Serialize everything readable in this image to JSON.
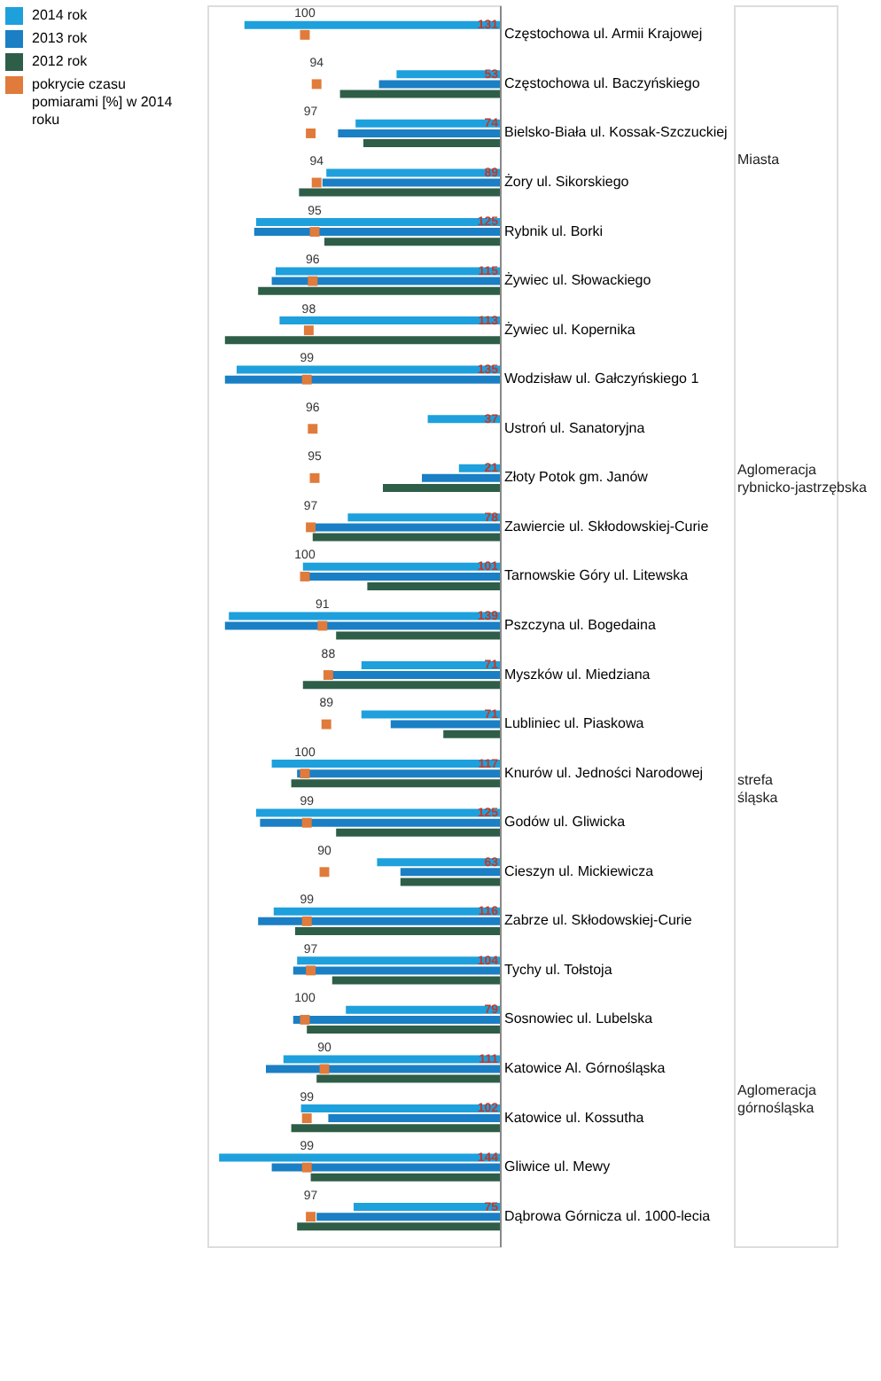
{
  "chart_data": {
    "type": "bar",
    "orientation": "horizontal",
    "categories": [
      "Częstochowa ul. Armii Krajowej",
      "Częstochowa ul. Baczyńskiego",
      "Bielsko-Biała ul. Kossak-Szczuckiej",
      "Żory ul. Sikorskiego",
      "Rybnik ul. Borki",
      "Żywiec ul. Słowackiego",
      "Żywiec ul. Kopernika",
      "Wodzisław ul. Gałczyńskiego 1",
      "Ustroń ul. Sanatoryjna",
      "Złoty Potok gm. Janów",
      "Zawiercie ul. Skłodowskiej-Curie",
      "Tarnowskie Góry ul. Litewska",
      "Pszczyna ul. Bogedaina",
      "Myszków ul. Miedziana",
      "Lubliniec ul. Piaskowa",
      "Knurów ul. Jedności Narodowej",
      "Godów ul. Gliwicka",
      "Cieszyn ul. Mickiewicza",
      "Zabrze ul. Skłodowskiej-Curie",
      "Tychy ul. Tołstoja",
      "Sosnowiec ul. Lubelska",
      "Katowice Al. Górnośląska",
      "Katowice ul. Kossutha",
      "Gliwice ul. Mewy",
      "Dąbrowa Górnicza ul. 1000-lecia"
    ],
    "xlim": [
      150,
      0
    ],
    "tick_labels": "y",
    "legend": "left",
    "series": [
      {
        "name": "2014 rok",
        "color": "#1ea0dc",
        "values": [
          131,
          53,
          74,
          89,
          125,
          115,
          113,
          135,
          37,
          21,
          78,
          101,
          139,
          71,
          71,
          117,
          125,
          63,
          116,
          104,
          79,
          111,
          102,
          144,
          75
        ],
        "value_labels": [
          "131",
          "53",
          "74",
          "89",
          "125",
          "115",
          "113",
          "135",
          "37",
          "21",
          "78",
          "101",
          "139",
          "71",
          "71",
          "117",
          "125",
          "63",
          "116",
          "104",
          "79",
          "111",
          "102",
          "144",
          "75"
        ]
      },
      {
        "name": "2013 rok",
        "color": "#1a7fc4",
        "values": [
          null,
          62,
          83,
          91,
          126,
          117,
          null,
          141,
          null,
          40,
          95,
          101,
          141,
          86,
          56,
          104,
          123,
          51,
          124,
          106,
          106,
          120,
          88,
          117,
          94
        ]
      },
      {
        "name": "2012 rok",
        "color": "#2e5e48",
        "values": [
          null,
          82,
          70,
          103,
          90,
          124,
          141,
          null,
          null,
          60,
          96,
          68,
          84,
          101,
          29,
          107,
          84,
          51,
          105,
          86,
          99,
          94,
          107,
          97,
          104
        ]
      },
      {
        "name": "pokrycie czasu pomiarami [%] w 2014 roku",
        "type": "scatter",
        "marker": "square",
        "color": "#e07b3c",
        "values": [
          100,
          94,
          97,
          94,
          95,
          96,
          98,
          99,
          96,
          95,
          97,
          100,
          91,
          88,
          89,
          100,
          99,
          90,
          99,
          97,
          100,
          90,
          99,
          99,
          97
        ],
        "value_labels": [
          "100",
          "94",
          "97",
          "94",
          "95",
          "96",
          "98",
          "99",
          "96",
          "95",
          "97",
          "100",
          "91",
          "88",
          "89",
          "100",
          "99",
          "90",
          "99",
          "97",
          "100",
          "90",
          "99",
          "99",
          "97"
        ]
      }
    ],
    "annotations": [
      "Miasta",
      "Aglomeracja rybnicko-jastrzębska",
      "strefa śląska",
      "Aglomeracja górnośląska"
    ]
  }
}
